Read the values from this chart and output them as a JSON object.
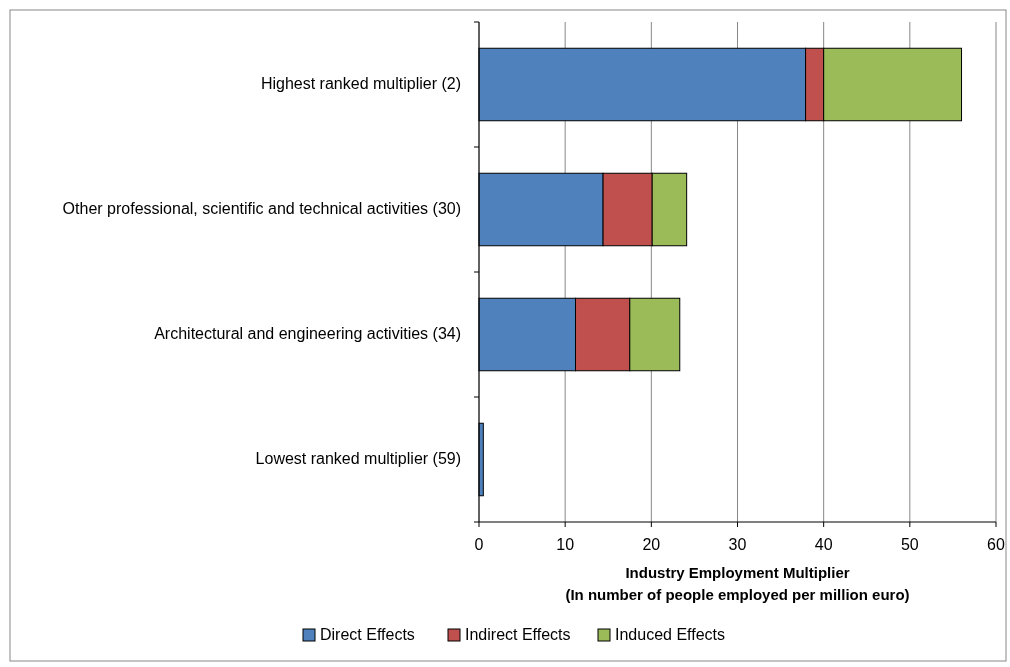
{
  "chart_data": {
    "type": "bar",
    "orientation": "horizontal",
    "stacked": true,
    "categories": [
      "Highest ranked multiplier (2)",
      "Other professional, scientific and technical activities (30)",
      "Architectural and engineering activities (34)",
      "Lowest ranked multiplier (59)"
    ],
    "series": [
      {
        "name": "Direct Effects",
        "color": "#4f81bd",
        "values": [
          37.9,
          14.4,
          11.2,
          0.5
        ]
      },
      {
        "name": "Indirect Effects",
        "color": "#c0504d",
        "values": [
          2.1,
          5.7,
          6.3,
          0
        ]
      },
      {
        "name": "Induced Effects",
        "color": "#9bbb59",
        "values": [
          16,
          4,
          5.8,
          0
        ]
      }
    ],
    "xlim": [
      0,
      60
    ],
    "xticks": [
      0,
      10,
      20,
      30,
      40,
      50,
      60
    ],
    "xlabel": "Industry Employment Multiplier\n(In number of people employed per million euro)",
    "grid": "x",
    "legend": "bottom"
  }
}
